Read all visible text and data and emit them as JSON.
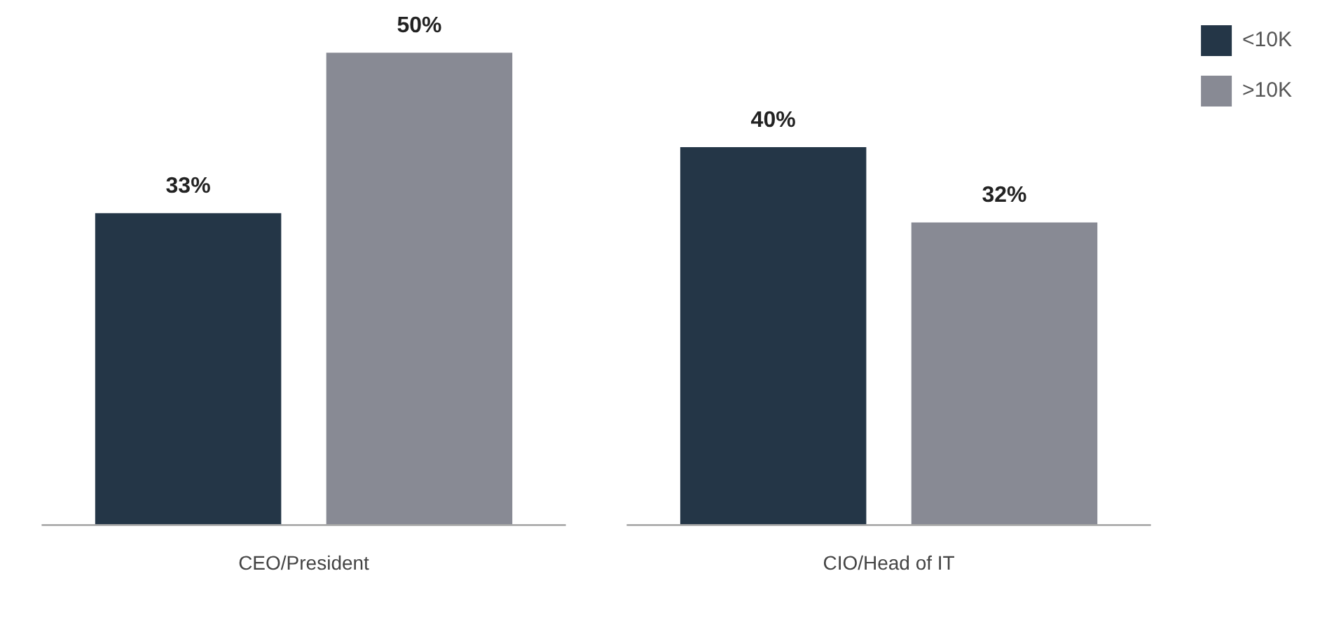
{
  "chart_data": {
    "type": "bar",
    "categories": [
      "CEO/President",
      "CIO/Head of IT"
    ],
    "series": [
      {
        "name": "<10K",
        "color": "#243647",
        "values": [
          33,
          40
        ],
        "value_labels": [
          "33%",
          "40%"
        ]
      },
      {
        "name": ">10K",
        "color": "#888a94",
        "values": [
          50,
          32
        ],
        "value_labels": [
          "50%",
          "32%"
        ]
      }
    ],
    "grid": false,
    "legend": "top right"
  }
}
